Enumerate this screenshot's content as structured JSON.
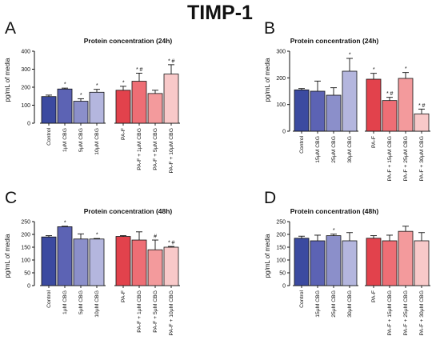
{
  "figure": {
    "title": "TIMP-1"
  },
  "colors": {
    "Control": "#3b4aa0",
    "cbg_dark": "#5c63b4",
    "cbg_mid": "#8b8fca",
    "cbg_light": "#b4b6de",
    "PA-F": "#e2424c",
    "paf_dark": "#ee6e75",
    "paf_mid": "#f39a9c",
    "paf_light": "#f8c9c9"
  },
  "chart_data": [
    {
      "panel": "A",
      "type": "bar",
      "title": "Protein concentration (24h)",
      "ylabel": "pg/mL of media",
      "ylim": [
        0,
        400
      ],
      "yticks": [
        0,
        100,
        200,
        300,
        400
      ],
      "groups": [
        {
          "categories": [
            "Control",
            "1μM CBG",
            "5μM CBG",
            "10μM CBG"
          ],
          "values": [
            148,
            190,
            122,
            172
          ],
          "errors": [
            8,
            5,
            14,
            16
          ],
          "annotations": [
            "",
            "*",
            "*",
            "*"
          ],
          "colors": [
            "#3b4aa0",
            "#5c63b4",
            "#8b8fca",
            "#b4b6de"
          ]
        },
        {
          "categories": [
            "PA-F",
            "PA-F + 1μM CBG",
            "PA-F + 5μM CBG",
            "PA-F + 10μM CBG"
          ],
          "values": [
            183,
            233,
            165,
            273
          ],
          "errors": [
            22,
            45,
            18,
            52
          ],
          "annotations": [
            "*",
            "* #",
            "",
            "* #"
          ],
          "colors": [
            "#e2424c",
            "#ee6e75",
            "#f39a9c",
            "#f8c9c9"
          ]
        }
      ]
    },
    {
      "panel": "B",
      "type": "bar",
      "title": "Protein concentration (24h)",
      "ylabel": "pg/mL of media",
      "ylim": [
        0,
        300
      ],
      "yticks": [
        0,
        100,
        200,
        300
      ],
      "groups": [
        {
          "categories": [
            "Control",
            "15μM CBG",
            "25μM CBG",
            "30μM CBG"
          ],
          "values": [
            155,
            150,
            135,
            225
          ],
          "errors": [
            5,
            38,
            28,
            48
          ],
          "annotations": [
            "",
            "",
            "",
            "*"
          ],
          "colors": [
            "#3b4aa0",
            "#5c63b4",
            "#8b8fca",
            "#b4b6de"
          ]
        },
        {
          "categories": [
            "PA-F",
            "PA-F + 15μM CBG",
            "PA-F + 25μM CBG",
            "PA-F + 30μM CBG"
          ],
          "values": [
            195,
            115,
            198,
            65
          ],
          "errors": [
            22,
            12,
            22,
            18
          ],
          "annotations": [
            "*",
            "* #",
            "*",
            "* #"
          ],
          "colors": [
            "#e2424c",
            "#ee6e75",
            "#f39a9c",
            "#f8c9c9"
          ]
        }
      ]
    },
    {
      "panel": "C",
      "type": "bar",
      "title": "Protein concentration (48h)",
      "ylabel": "pg/mL of media",
      "ylim": [
        0,
        250
      ],
      "yticks": [
        0,
        50,
        100,
        150,
        200,
        250
      ],
      "groups": [
        {
          "categories": [
            "Control",
            "1μM CBG",
            "5μM CBG",
            "10μM CBG"
          ],
          "values": [
            190,
            230,
            182,
            182
          ],
          "errors": [
            5,
            2,
            20,
            2
          ],
          "annotations": [
            "",
            "*",
            "",
            "*"
          ],
          "colors": [
            "#3b4aa0",
            "#5c63b4",
            "#8b8fca",
            "#b4b6de"
          ]
        },
        {
          "categories": [
            "PA-F",
            "PA-F + 1μM CBG",
            "PA-F + 5μM CBG",
            "PA-F + 10μM CBG"
          ],
          "values": [
            192,
            178,
            140,
            150
          ],
          "errors": [
            3,
            32,
            38,
            3
          ],
          "annotations": [
            "",
            "",
            "#",
            "* #"
          ],
          "colors": [
            "#e2424c",
            "#ee6e75",
            "#f39a9c",
            "#f8c9c9"
          ]
        }
      ]
    },
    {
      "panel": "D",
      "type": "bar",
      "title": "Protein concentration (48h)",
      "ylabel": "pg/mL of media",
      "ylim": [
        0,
        250
      ],
      "yticks": [
        0,
        50,
        100,
        150,
        200,
        250
      ],
      "groups": [
        {
          "categories": [
            "Control",
            "15μM CBG",
            "25μM CBG",
            "30μM CBG"
          ],
          "values": [
            185,
            175,
            195,
            175
          ],
          "errors": [
            8,
            22,
            6,
            32
          ],
          "annotations": [
            "",
            "",
            "*",
            ""
          ],
          "colors": [
            "#3b4aa0",
            "#5c63b4",
            "#8b8fca",
            "#b4b6de"
          ]
        },
        {
          "categories": [
            "PA-F",
            "PA-F + 15μM CBG",
            "PA-F + 25μM CBG",
            "PA-F + 30μM CBG"
          ],
          "values": [
            185,
            175,
            212,
            175
          ],
          "errors": [
            10,
            22,
            20,
            32
          ],
          "annotations": [
            "",
            "",
            "",
            ""
          ],
          "colors": [
            "#e2424c",
            "#ee6e75",
            "#f39a9c",
            "#f8c9c9"
          ]
        }
      ]
    }
  ]
}
